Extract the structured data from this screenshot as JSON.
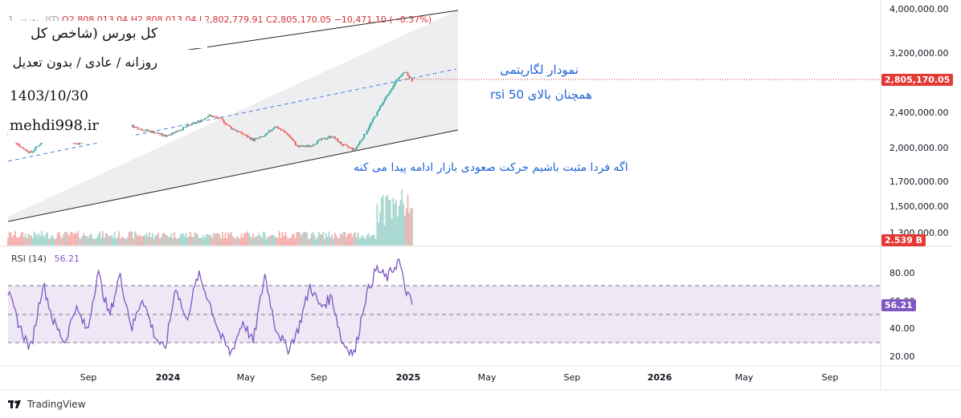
{
  "header": {
    "symbol": "کل بورس",
    "interval": "1D",
    "open": "O2,808,013.04",
    "high": "H2,808,013.04",
    "low": "L2,802,779.91",
    "close": "C2,805,170.05",
    "change": "−10,471.10 (−0.37%)"
  },
  "info": {
    "title": "کل بورس (شاخص کل بورس)",
    "subtitle": "روزانه / عادی / بدون تعدیل",
    "datetime": "1403/10/30 09:37",
    "website": "mehdi998.ir"
  },
  "annotations": {
    "log_chart": "نمودار لگاریتمی",
    "rsi_above": "همچنان بالای 50 rsi",
    "tomorrow": "اگه فردا مثبت باشیم حرکت صعودی بازار ادامه پیدا می کنه"
  },
  "price_axis": {
    "labels": [
      "4,000,000.00",
      "3,200,000.00",
      "2,400,000.00",
      "2,000,000.00",
      "1,700,000.00",
      "1,500,000.00",
      "1,300,000.00"
    ],
    "current_price": "2,805,170.05",
    "volume_tag": "2.539 B"
  },
  "rsi": {
    "title": "RSI (14)",
    "value": "56.21",
    "axis_labels": [
      "80.00",
      "60.00",
      "40.00",
      "20.00"
    ],
    "upper_band": 70,
    "middle_band": 50,
    "lower_band": 30
  },
  "time_axis": {
    "labels": [
      "Sep",
      "2024",
      "May",
      "Sep",
      "2025",
      "May",
      "Sep",
      "2026",
      "May",
      "Sep"
    ],
    "bold": [
      "2024",
      "2025",
      "2026"
    ]
  },
  "branding": {
    "name": "TradingView"
  },
  "colors": {
    "up": "#26a69a",
    "down": "#ef5350",
    "rsi_line": "#7e57c2",
    "rsi_band": "#ede7f6",
    "channel_fill": "#eeeef0",
    "midline": "#4a7fe0",
    "price_line": "#d32f2f",
    "text_blue": "#1e63d6"
  },
  "chart_data": {
    "type": "candlestick",
    "scale": "log",
    "ylim": [
      1300000,
      4000000
    ],
    "x": [
      "2023-07-15",
      "2025-01-19"
    ],
    "close_path": [
      [
        "2023-07-15",
        2150000
      ],
      [
        "2023-08-01",
        2020000
      ],
      [
        "2023-08-15",
        1960000
      ],
      [
        "2023-09-01",
        2080000
      ],
      [
        "2023-09-15",
        2160000
      ],
      [
        "2023-10-01",
        2110000
      ],
      [
        "2023-10-15",
        2050000
      ],
      [
        "2023-11-01",
        2080000
      ],
      [
        "2023-11-15",
        2120000
      ],
      [
        "2023-12-01",
        2170000
      ],
      [
        "2023-12-15",
        2260000
      ],
      [
        "2024-01-01",
        2240000
      ],
      [
        "2024-01-15",
        2200000
      ],
      [
        "2024-02-01",
        2170000
      ],
      [
        "2024-02-15",
        2130000
      ],
      [
        "2024-03-01",
        2180000
      ],
      [
        "2024-03-15",
        2230000
      ],
      [
        "2024-04-01",
        2290000
      ],
      [
        "2024-04-15",
        2360000
      ],
      [
        "2024-05-01",
        2320000
      ],
      [
        "2024-05-15",
        2220000
      ],
      [
        "2024-06-01",
        2150000
      ],
      [
        "2024-06-15",
        2090000
      ],
      [
        "2024-07-01",
        2130000
      ],
      [
        "2024-07-15",
        2240000
      ],
      [
        "2024-08-01",
        2150000
      ],
      [
        "2024-08-15",
        2020000
      ],
      [
        "2024-09-01",
        2030000
      ],
      [
        "2024-09-15",
        2090000
      ],
      [
        "2024-10-01",
        2130000
      ],
      [
        "2024-10-15",
        2040000
      ],
      [
        "2024-11-01",
        1990000
      ],
      [
        "2024-11-15",
        2150000
      ],
      [
        "2024-12-01",
        2380000
      ],
      [
        "2024-12-15",
        2600000
      ],
      [
        "2025-01-01",
        2860000
      ],
      [
        "2025-01-08",
        2940000
      ],
      [
        "2025-01-19",
        2805170
      ]
    ],
    "rsi_path": [
      [
        "2023-07-15",
        65
      ],
      [
        "2023-08-01",
        40
      ],
      [
        "2023-08-15",
        25
      ],
      [
        "2023-09-01",
        72
      ],
      [
        "2023-09-15",
        45
      ],
      [
        "2023-10-01",
        30
      ],
      [
        "2023-10-15",
        55
      ],
      [
        "2023-11-01",
        38
      ],
      [
        "2023-11-15",
        80
      ],
      [
        "2023-12-01",
        48
      ],
      [
        "2023-12-15",
        78
      ],
      [
        "2024-01-01",
        40
      ],
      [
        "2024-01-15",
        62
      ],
      [
        "2024-02-01",
        35
      ],
      [
        "2024-02-15",
        24
      ],
      [
        "2024-03-01",
        70
      ],
      [
        "2024-03-15",
        45
      ],
      [
        "2024-04-01",
        78
      ],
      [
        "2024-04-15",
        60
      ],
      [
        "2024-05-01",
        35
      ],
      [
        "2024-05-15",
        22
      ],
      [
        "2024-06-01",
        45
      ],
      [
        "2024-06-15",
        30
      ],
      [
        "2024-07-01",
        78
      ],
      [
        "2024-07-15",
        42
      ],
      [
        "2024-08-01",
        25
      ],
      [
        "2024-08-15",
        38
      ],
      [
        "2024-09-01",
        70
      ],
      [
        "2024-09-15",
        55
      ],
      [
        "2024-10-01",
        62
      ],
      [
        "2024-10-15",
        30
      ],
      [
        "2024-11-01",
        22
      ],
      [
        "2024-11-15",
        60
      ],
      [
        "2024-12-01",
        82
      ],
      [
        "2024-12-15",
        75
      ],
      [
        "2025-01-01",
        88
      ],
      [
        "2025-01-08",
        70
      ],
      [
        "2025-01-19",
        56.21
      ]
    ]
  }
}
